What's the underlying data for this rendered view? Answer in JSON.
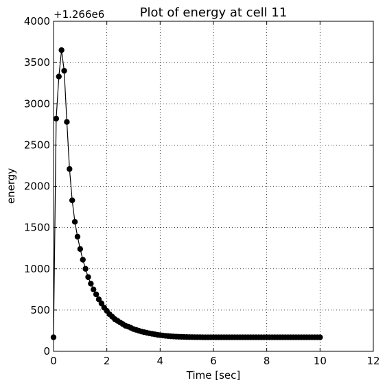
{
  "chart_data": {
    "type": "line",
    "title": "Plot of energy at cell 11",
    "xlabel": "Time [sec]",
    "ylabel": "energy",
    "y_offset_label": "+1.266e6",
    "xlim": [
      0,
      12
    ],
    "ylim": [
      0,
      4000
    ],
    "x_ticks": [
      "0",
      "2",
      "4",
      "6",
      "8",
      "10",
      "12"
    ],
    "y_ticks": [
      "0",
      "500",
      "1000",
      "1500",
      "2000",
      "2500",
      "3000",
      "3500",
      "4000"
    ],
    "grid": true,
    "series": [
      {
        "color": "#000000",
        "marker": "circle",
        "x": [
          0,
          0.1,
          0.2,
          0.3,
          0.4,
          0.5,
          0.6,
          0.7,
          0.8,
          0.9,
          1.0,
          1.1,
          1.2,
          1.3,
          1.4,
          1.5,
          1.6,
          1.7,
          1.8,
          1.9,
          2.0,
          2.1,
          2.2,
          2.3,
          2.4,
          2.5,
          2.6,
          2.7,
          2.8,
          2.9,
          3.0,
          3.1,
          3.2,
          3.3,
          3.4,
          3.5,
          3.6,
          3.7,
          3.8,
          3.9,
          4.0,
          4.1,
          4.2,
          4.3,
          4.4,
          4.5,
          4.6,
          4.7,
          4.8,
          4.9,
          5.0,
          5.1,
          5.2,
          5.3,
          5.4,
          5.5,
          5.6,
          5.7,
          5.8,
          5.9,
          6.0,
          6.1,
          6.2,
          6.3,
          6.4,
          6.5,
          6.6,
          6.7,
          6.8,
          6.9,
          7.0,
          7.1,
          7.2,
          7.3,
          7.4,
          7.5,
          7.6,
          7.7,
          7.8,
          7.9,
          8.0,
          8.1,
          8.2,
          8.3,
          8.4,
          8.5,
          8.6,
          8.7,
          8.8,
          8.9,
          9.0,
          9.1,
          9.2,
          9.3,
          9.4,
          9.5,
          9.6,
          9.7,
          9.8,
          9.9,
          10.0
        ],
        "values": [
          170,
          2820,
          3330,
          3650,
          3400,
          2780,
          2210,
          1830,
          1570,
          1390,
          1240,
          1110,
          1000,
          900,
          820,
          750,
          690,
          630,
          580,
          530,
          490,
          450,
          420,
          390,
          370,
          350,
          330,
          310,
          300,
          285,
          270,
          260,
          250,
          240,
          232,
          225,
          218,
          212,
          206,
          200,
          196,
          192,
          188,
          185,
          182,
          180,
          178,
          176,
          175,
          174,
          173,
          172,
          172,
          171,
          171,
          171,
          170,
          170,
          170,
          170,
          170,
          170,
          170,
          170,
          170,
          170,
          170,
          170,
          170,
          170,
          170,
          170,
          170,
          170,
          170,
          170,
          170,
          170,
          170,
          170,
          170,
          170,
          170,
          170,
          170,
          170,
          170,
          170,
          170,
          170,
          170,
          170,
          170,
          170,
          170,
          170,
          170,
          170,
          170,
          170,
          170
        ]
      }
    ]
  }
}
